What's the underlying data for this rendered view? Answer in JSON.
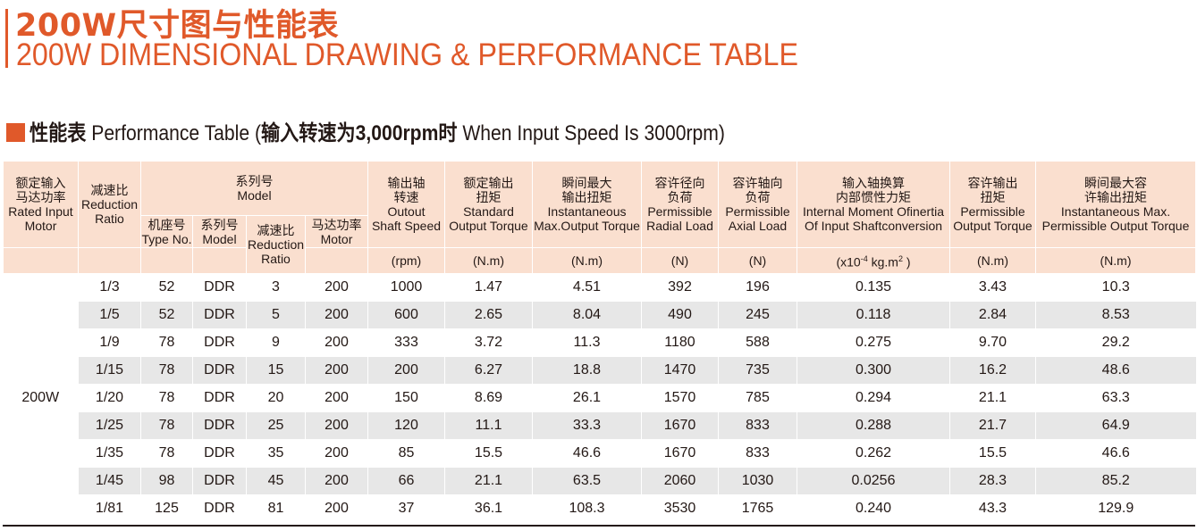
{
  "title": {
    "cn": "200W尺寸图与性能表",
    "en": "200W DIMENSIONAL DRAWING & PERFORMANCE TABLE"
  },
  "section": {
    "cn1": "性能表",
    "en1": " Performance Table (",
    "cn2": "输入转速为",
    "en2": "3,000rpm",
    "cn3": "时",
    "en3": " When Input Speed Is 3000rpm)"
  },
  "colors": {
    "accent": "#e0592a",
    "header_bg": "#fadfcf",
    "row_shade": "#e7e7e7"
  },
  "headers": {
    "rated": {
      "cn1": "额定输入",
      "cn2": "马达功率",
      "en1": "Rated Input",
      "en2": "Motor"
    },
    "ratio": {
      "cn": "减速比",
      "en1": "Reduction",
      "en2": "Ratio"
    },
    "model_group": {
      "cn": "系列号",
      "en": "Model"
    },
    "type_no": {
      "cn": "机座号",
      "en": "Type No."
    },
    "model": {
      "cn": "系列号",
      "en": "Model"
    },
    "sub_ratio": {
      "cn": "减速比",
      "en1": "Reduction",
      "en2": "Ratio"
    },
    "motor": {
      "cn": "马达功率",
      "en": "Motor"
    },
    "speed": {
      "cn1": "输出轴",
      "cn2": "转速",
      "en1": "Outout",
      "en2": "Shaft Speed",
      "unit": "(rpm)"
    },
    "torque": {
      "cn1": "额定输出",
      "cn2": "扭矩",
      "en1": "Standard",
      "en2": "Output Torque",
      "unit": "(N.m)"
    },
    "inst": {
      "cn1": "瞬间最大",
      "cn2": "输出扭矩",
      "en1": "Instantaneous",
      "en2": "Max.Output Torque",
      "unit": "(N.m)"
    },
    "radial": {
      "cn1": "容许径向",
      "cn2": "负荷",
      "en1": "Permissible",
      "en2": "Radial Load",
      "unit": "(N)"
    },
    "axial": {
      "cn1": "容许轴向",
      "cn2": "负荷",
      "en1": "Permissible",
      "en2": "Axial Load",
      "unit": "(N)"
    },
    "inertia": {
      "cn1": "输入轴换算",
      "cn2": "内部惯性力矩",
      "en1": "Internal Moment Ofinertia",
      "en2": "Of Input Shaftconversion",
      "unit_a": "(x10",
      "unit_exp": "-4",
      "unit_b": " kg.m",
      "unit_exp2": "2",
      "unit_c": " )"
    },
    "perm": {
      "cn1": "容许输出",
      "cn2": "扭矩",
      "en1": "Permissible",
      "en2": "Output Torque",
      "unit": "(N.m)"
    },
    "maxperm": {
      "cn1": "瞬间最大容",
      "cn2": "许输出扭矩",
      "en1": "Instantaneous Max.",
      "en2": "Permissible Output Torque",
      "unit": "(N.m)"
    }
  },
  "power": "200W",
  "rows": [
    {
      "ratio": "1/3",
      "type": "52",
      "model": "DDR",
      "red": "3",
      "motor": "200",
      "speed": "1000",
      "torque": "1.47",
      "inst": "4.51",
      "radial": "392",
      "axial": "196",
      "inertia": "0.135",
      "perm": "3.43",
      "maxperm": "10.3"
    },
    {
      "ratio": "1/5",
      "type": "52",
      "model": "DDR",
      "red": "5",
      "motor": "200",
      "speed": "600",
      "torque": "2.65",
      "inst": "8.04",
      "radial": "490",
      "axial": "245",
      "inertia": "0.118",
      "perm": "2.84",
      "maxperm": "8.53"
    },
    {
      "ratio": "1/9",
      "type": "78",
      "model": "DDR",
      "red": "9",
      "motor": "200",
      "speed": "333",
      "torque": "3.72",
      "inst": "11.3",
      "radial": "1180",
      "axial": "588",
      "inertia": "0.275",
      "perm": "9.70",
      "maxperm": "29.2"
    },
    {
      "ratio": "1/15",
      "type": "78",
      "model": "DDR",
      "red": "15",
      "motor": "200",
      "speed": "200",
      "torque": "6.27",
      "inst": "18.8",
      "radial": "1470",
      "axial": "735",
      "inertia": "0.300",
      "perm": "16.2",
      "maxperm": "48.6"
    },
    {
      "ratio": "1/20",
      "type": "78",
      "model": "DDR",
      "red": "20",
      "motor": "200",
      "speed": "150",
      "torque": "8.69",
      "inst": "26.1",
      "radial": "1570",
      "axial": "785",
      "inertia": "0.294",
      "perm": "21.1",
      "maxperm": "63.3"
    },
    {
      "ratio": "1/25",
      "type": "78",
      "model": "DDR",
      "red": "25",
      "motor": "200",
      "speed": "120",
      "torque": "11.1",
      "inst": "33.3",
      "radial": "1670",
      "axial": "833",
      "inertia": "0.288",
      "perm": "21.7",
      "maxperm": "64.9"
    },
    {
      "ratio": "1/35",
      "type": "78",
      "model": "DDR",
      "red": "35",
      "motor": "200",
      "speed": "85",
      "torque": "15.5",
      "inst": "46.6",
      "radial": "1670",
      "axial": "833",
      "inertia": "0.262",
      "perm": "15.5",
      "maxperm": "46.6"
    },
    {
      "ratio": "1/45",
      "type": "98",
      "model": "DDR",
      "red": "45",
      "motor": "200",
      "speed": "66",
      "torque": "21.1",
      "inst": "63.5",
      "radial": "2060",
      "axial": "1030",
      "inertia": "0.0256",
      "perm": "28.3",
      "maxperm": "85.2"
    },
    {
      "ratio": "1/81",
      "type": "125",
      "model": "DDR",
      "red": "81",
      "motor": "200",
      "speed": "37",
      "torque": "36.1",
      "inst": "108.3",
      "radial": "3530",
      "axial": "1765",
      "inertia": "0.240",
      "perm": "43.3",
      "maxperm": "129.9"
    }
  ]
}
